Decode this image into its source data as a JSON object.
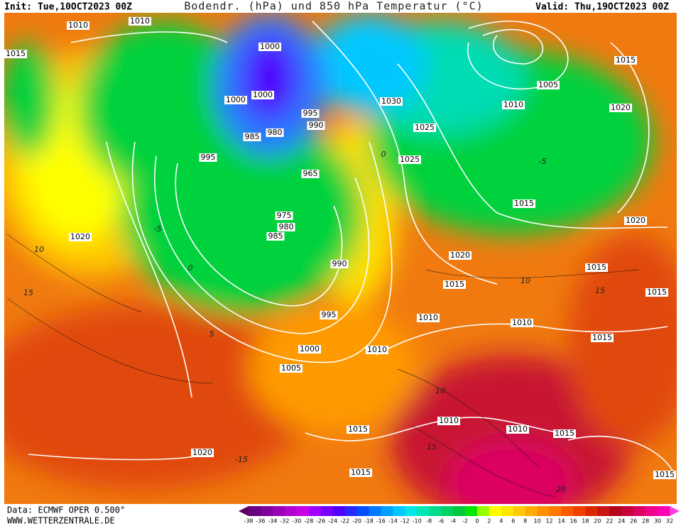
{
  "header": {
    "init": "Init: Tue,10OCT2023 00Z",
    "title": "Bodendr. (hPa) und 850 hPa Temperatur (°C)",
    "valid": "Valid: Thu,19OCT2023 00Z"
  },
  "footer": {
    "data": "Data: ECMWF OPER 0.500°",
    "site": "WWW.WETTERZENTRALE.DE"
  },
  "colorbar": {
    "ticks": [
      -38,
      -36,
      -34,
      -32,
      -30,
      -28,
      -26,
      -24,
      -22,
      -20,
      -18,
      -16,
      -14,
      -12,
      -10,
      -8,
      -6,
      -4,
      -2,
      0,
      2,
      4,
      6,
      8,
      10,
      12,
      14,
      16,
      18,
      20,
      22,
      24,
      26,
      28,
      30,
      32
    ],
    "low_color": "#5a0060",
    "high_color": "#ff3cdc",
    "colors": [
      "#6a0080",
      "#80009a",
      "#9a00b4",
      "#b400d0",
      "#c800e6",
      "#a000ff",
      "#7800ff",
      "#5000ff",
      "#2828ff",
      "#0050ff",
      "#0078ff",
      "#00a0ff",
      "#00c8ff",
      "#00e6e6",
      "#00e6b4",
      "#00dc8c",
      "#00d264",
      "#00c83c",
      "#00e600",
      "#96ff00",
      "#ffff00",
      "#ffe600",
      "#ffc800",
      "#ffaa00",
      "#ff9100",
      "#ff7800",
      "#ff5a00",
      "#f04000",
      "#dc2800",
      "#c81414",
      "#b4001e",
      "#c8003c",
      "#dc0064",
      "#f0008c",
      "#ff00b4"
    ]
  },
  "isobar_labels": [
    "1010",
    "1010",
    "1015",
    "1000",
    "1000",
    "1000",
    "995",
    "990",
    "985",
    "980",
    "995",
    "1030",
    "1025",
    "1025",
    "1005",
    "1010",
    "1015",
    "1020",
    "965",
    "975",
    "980",
    "985",
    "1020",
    "1015",
    "1020",
    "1020",
    "990",
    "1015",
    "1015",
    "1015",
    "1010",
    "1010",
    "995",
    "1000",
    "1010",
    "1015",
    "1005",
    "1010",
    "1015",
    "1010",
    "1015",
    "1020",
    "1015",
    "1015"
  ],
  "isotherm_labels": [
    "10",
    "15",
    "5",
    "0",
    "-5",
    "10",
    "15",
    "20",
    "-15",
    "10",
    "15",
    "0",
    "-5"
  ]
}
